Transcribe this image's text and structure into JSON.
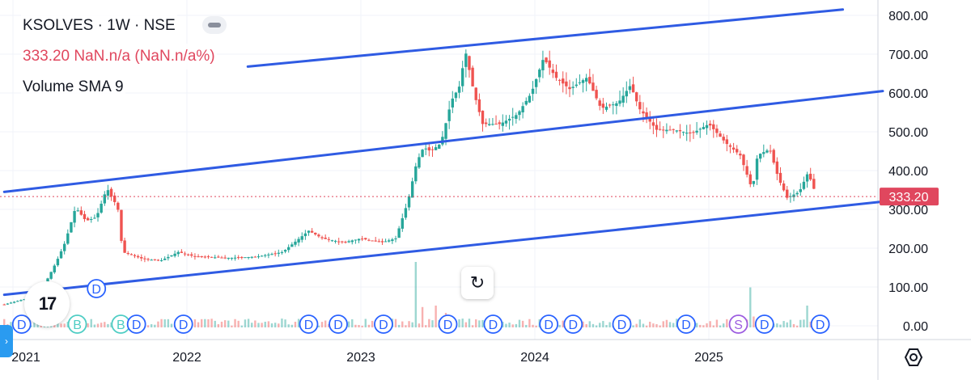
{
  "legend": {
    "symbol": "KSOLVES · 1W · NSE",
    "price_change": "333.20  NaN.n/a (NaN.n/a%)",
    "indicator": "Volume SMA 9"
  },
  "price_badge": "333.20",
  "icons": {
    "logo": "tradingview-logo-icon",
    "reset": "reset-icon",
    "settings": "gear-icon",
    "side_tab": "chevron-right-icon",
    "hide": "eye-hide-icon"
  },
  "chart_data": {
    "type": "candlestick",
    "title": "KSOLVES · 1W · NSE",
    "x_ticks": [
      "2021",
      "2022",
      "2023",
      "2024",
      "2025"
    ],
    "y_ticks": [
      "0.00",
      "100.00",
      "200.00",
      "300.00",
      "400.00",
      "500.00",
      "600.00",
      "700.00",
      "800.00"
    ],
    "ylim": [
      -30,
      830
    ],
    "last_price": 333.2,
    "colors": {
      "up": "#26a69a",
      "down": "#ef5350",
      "trendline": "#2f5be3",
      "price_line": "#e0475e"
    },
    "price_anchors": [
      {
        "t": 2020.95,
        "v": 55
      },
      {
        "t": 2021.12,
        "v": 75
      },
      {
        "t": 2021.18,
        "v": 105
      },
      {
        "t": 2021.25,
        "v": 165
      },
      {
        "t": 2021.3,
        "v": 215
      },
      {
        "t": 2021.36,
        "v": 305
      },
      {
        "t": 2021.42,
        "v": 270
      },
      {
        "t": 2021.48,
        "v": 280
      },
      {
        "t": 2021.54,
        "v": 355
      },
      {
        "t": 2021.58,
        "v": 320
      },
      {
        "t": 2021.6,
        "v": 315
      },
      {
        "t": 2021.63,
        "v": 190
      },
      {
        "t": 2021.75,
        "v": 172
      },
      {
        "t": 2021.85,
        "v": 168
      },
      {
        "t": 2021.95,
        "v": 190
      },
      {
        "t": 2022.05,
        "v": 178
      },
      {
        "t": 2022.25,
        "v": 175
      },
      {
        "t": 2022.4,
        "v": 178
      },
      {
        "t": 2022.55,
        "v": 190
      },
      {
        "t": 2022.7,
        "v": 245
      },
      {
        "t": 2022.78,
        "v": 225
      },
      {
        "t": 2022.9,
        "v": 215
      },
      {
        "t": 2023.0,
        "v": 225
      },
      {
        "t": 2023.12,
        "v": 215
      },
      {
        "t": 2023.2,
        "v": 225
      },
      {
        "t": 2023.27,
        "v": 320
      },
      {
        "t": 2023.32,
        "v": 420
      },
      {
        "t": 2023.36,
        "v": 460
      },
      {
        "t": 2023.4,
        "v": 450
      },
      {
        "t": 2023.46,
        "v": 470
      },
      {
        "t": 2023.52,
        "v": 580
      },
      {
        "t": 2023.57,
        "v": 620
      },
      {
        "t": 2023.6,
        "v": 710
      },
      {
        "t": 2023.65,
        "v": 600
      },
      {
        "t": 2023.7,
        "v": 520
      },
      {
        "t": 2023.8,
        "v": 520
      },
      {
        "t": 2023.9,
        "v": 545
      },
      {
        "t": 2023.98,
        "v": 600
      },
      {
        "t": 2024.05,
        "v": 690
      },
      {
        "t": 2024.12,
        "v": 640
      },
      {
        "t": 2024.2,
        "v": 610
      },
      {
        "t": 2024.3,
        "v": 640
      },
      {
        "t": 2024.38,
        "v": 560
      },
      {
        "t": 2024.48,
        "v": 575
      },
      {
        "t": 2024.55,
        "v": 620
      },
      {
        "t": 2024.6,
        "v": 560
      },
      {
        "t": 2024.7,
        "v": 505
      },
      {
        "t": 2024.8,
        "v": 505
      },
      {
        "t": 2024.9,
        "v": 495
      },
      {
        "t": 2025.0,
        "v": 520
      },
      {
        "t": 2025.1,
        "v": 470
      },
      {
        "t": 2025.18,
        "v": 440
      },
      {
        "t": 2025.25,
        "v": 350
      },
      {
        "t": 2025.28,
        "v": 440
      },
      {
        "t": 2025.35,
        "v": 455
      },
      {
        "t": 2025.4,
        "v": 380
      },
      {
        "t": 2025.45,
        "v": 330
      },
      {
        "t": 2025.52,
        "v": 345
      },
      {
        "t": 2025.57,
        "v": 395
      },
      {
        "t": 2025.62,
        "v": 333
      }
    ],
    "trendlines": [
      {
        "points": [
          [
            2020.95,
            345
          ],
          [
            2026.0,
            605
          ]
        ]
      },
      {
        "points": [
          [
            2020.95,
            80
          ],
          [
            2026.0,
            320
          ]
        ]
      },
      {
        "points": [
          [
            2022.35,
            668
          ],
          [
            2025.77,
            815
          ]
        ]
      }
    ],
    "volume_spikes": [
      {
        "t": 2023.31,
        "v": 0.9
      },
      {
        "t": 2023.36,
        "v": 0.28
      },
      {
        "t": 2023.44,
        "v": 0.3
      },
      {
        "t": 2023.49,
        "v": 0.2
      },
      {
        "t": 2025.24,
        "v": 0.55
      },
      {
        "t": 2025.25,
        "v": 0.15
      },
      {
        "t": 2025.57,
        "v": 0.3
      }
    ],
    "events": [
      {
        "t": 2021.05,
        "type": "D",
        "row": "low"
      },
      {
        "t": 2021.37,
        "type": "B",
        "row": "low"
      },
      {
        "t": 2021.48,
        "type": "D",
        "row": "high"
      },
      {
        "t": 2021.62,
        "type": "B",
        "row": "low"
      },
      {
        "t": 2021.71,
        "type": "D",
        "row": "low"
      },
      {
        "t": 2021.98,
        "type": "D",
        "row": "low"
      },
      {
        "t": 2022.7,
        "type": "D",
        "row": "low"
      },
      {
        "t": 2022.87,
        "type": "D",
        "row": "low"
      },
      {
        "t": 2023.13,
        "type": "D",
        "row": "low"
      },
      {
        "t": 2023.5,
        "type": "D",
        "row": "low"
      },
      {
        "t": 2023.76,
        "type": "D",
        "row": "low"
      },
      {
        "t": 2024.08,
        "type": "D",
        "row": "low"
      },
      {
        "t": 2024.22,
        "type": "D",
        "row": "low"
      },
      {
        "t": 2024.5,
        "type": "D",
        "row": "low"
      },
      {
        "t": 2024.87,
        "type": "D",
        "row": "low"
      },
      {
        "t": 2025.17,
        "type": "S",
        "row": "low"
      },
      {
        "t": 2025.32,
        "type": "D",
        "row": "low"
      },
      {
        "t": 2025.64,
        "type": "D",
        "row": "low"
      }
    ]
  }
}
